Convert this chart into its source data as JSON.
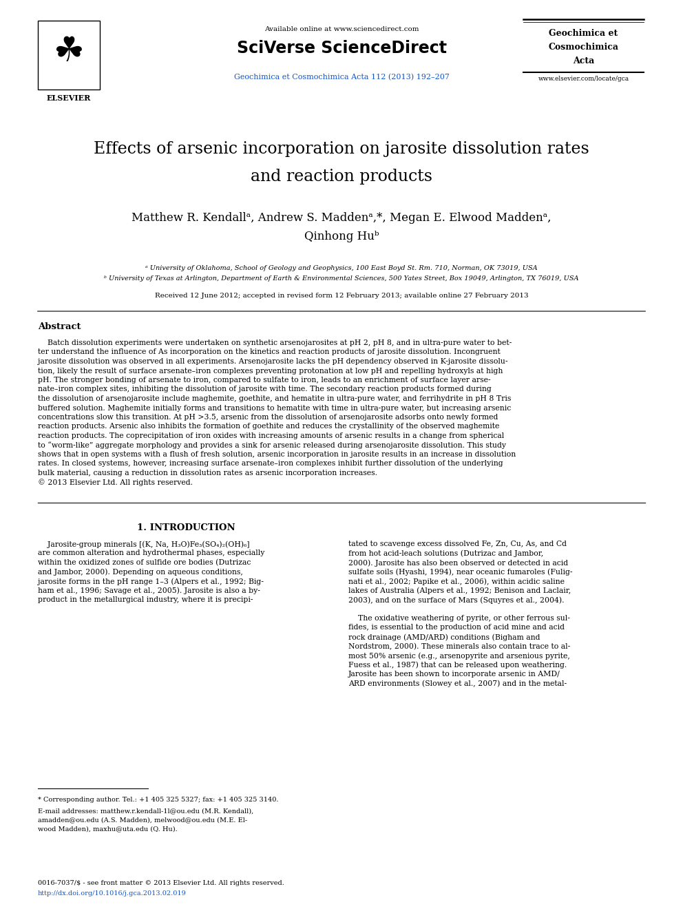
{
  "page_width": 9.92,
  "page_height": 13.23,
  "bg_color": "#ffffff",
  "header_available": "Available online at www.sciencedirect.com",
  "header_sciverse": "SciVerse ScienceDirect",
  "header_journal_link": "Geochimica et Cosmochimica Acta 112 (2013) 192–207",
  "journal_name_line1": "Geochimica et",
  "journal_name_line2": "Cosmochimica",
  "journal_name_line3": "Acta",
  "journal_url": "www.elsevier.com/locate/gca",
  "elsevier_text": "ELSEVIER",
  "title_line1": "Effects of arsenic incorporation on jarosite dissolution rates",
  "title_line2": "and reaction products",
  "authors_line1": "Matthew R. Kendallᵃ, Andrew S. Maddenᵃ,*, Megan E. Elwood Maddenᵃ,",
  "authors_line2": "Qinhong Huᵇ",
  "affiliation_a": "ᵃ University of Oklahoma, School of Geology and Geophysics, 100 East Boyd St. Rm. 710, Norman, OK 73019, USA",
  "affiliation_b": "ᵇ University of Texas at Arlington, Department of Earth & Environmental Sciences, 500 Yates Street, Box 19049, Arlington, TX 76019, USA",
  "received_text": "Received 12 June 2012; accepted in revised form 12 February 2013; available online 27 February 2013",
  "abstract_heading": "Abstract",
  "abstract_line1": "    Batch dissolution experiments were undertaken on synthetic arsenojarosites at pH 2, pH 8, and in ultra-pure water to bet-",
  "abstract_line2": "ter understand the influence of As incorporation on the kinetics and reaction products of jarosite dissolution. Incongruent",
  "abstract_line3": "jarosite dissolution was observed in all experiments. Arsenojarosite lacks the pH dependency observed in K-jarosite dissolu-",
  "abstract_line4": "tion, likely the result of surface arsenate–iron complexes preventing protonation at low pH and repelling hydroxyls at high",
  "abstract_line5": "pH. The stronger bonding of arsenate to iron, compared to sulfate to iron, leads to an enrichment of surface layer arse-",
  "abstract_line6": "nate–iron complex sites, inhibiting the dissolution of jarosite with time. The secondary reaction products formed during",
  "abstract_line7": "the dissolution of arsenojarosite include maghemite, goethite, and hematite in ultra-pure water, and ferrihydrite in pH 8 Tris",
  "abstract_line8": "buffered solution. Maghemite initially forms and transitions to hematite with time in ultra-pure water, but increasing arsenic",
  "abstract_line9": "concentrations slow this transition. At pH >3.5, arsenic from the dissolution of arsenojarosite adsorbs onto newly formed",
  "abstract_line10": "reaction products. Arsenic also inhibits the formation of goethite and reduces the crystallinity of the observed maghemite",
  "abstract_line11": "reaction products. The coprecipitation of iron oxides with increasing amounts of arsenic results in a change from spherical",
  "abstract_line12": "to “worm-like” aggregate morphology and provides a sink for arsenic released during arsenojarosite dissolution. This study",
  "abstract_line13": "shows that in open systems with a flush of fresh solution, arsenic incorporation in jarosite results in an increase in dissolution",
  "abstract_line14": "rates. In closed systems, however, increasing surface arsenate–iron complexes inhibit further dissolution of the underlying",
  "abstract_line15": "bulk material, causing a reduction in dissolution rates as arsenic incorporation increases.",
  "abstract_copyright": "© 2013 Elsevier Ltd. All rights reserved.",
  "section1_heading": "1. INTRODUCTION",
  "col1_l1": "    Jarosite-group minerals [(K, Na, H₃O)Fe₃(SO₄)₂(OH)₆]",
  "col1_l2": "are common alteration and hydrothermal phases, especially",
  "col1_l3": "within the oxidized zones of sulfide ore bodies (Dutrizac",
  "col1_l4": "and Jambor, 2000). Depending on aqueous conditions,",
  "col1_l5": "jarosite forms in the pH range 1–3 (Alpers et al., 1992; Big-",
  "col1_l6": "ham et al., 1996; Savage et al., 2005). Jarosite is also a by-",
  "col1_l7": "product in the metallurgical industry, where it is precipi-",
  "col2_l1": "tated to scavenge excess dissolved Fe, Zn, Cu, As, and Cd",
  "col2_l2": "from hot acid-leach solutions (Dutrizac and Jambor,",
  "col2_l3": "2000). Jarosite has also been observed or detected in acid",
  "col2_l4": "sulfate soils (Hyashi, 1994), near oceanic fumaroles (Fulig-",
  "col2_l5": "nati et al., 2002; Papike et al., 2006), within acidic saline",
  "col2_l6": "lakes of Australia (Alpers et al., 1992; Benison and Laclair,",
  "col2_l7": "2003), and on the surface of Mars (Squyres et al., 2004).",
  "col2_l8": "",
  "col2_l9": "    The oxidative weathering of pyrite, or other ferrous sul-",
  "col2_l10": "fides, is essential to the production of acid mine and acid",
  "col2_l11": "rock drainage (AMD/ARD) conditions (Bigham and",
  "col2_l12": "Nordstrom, 2000). These minerals also contain trace to al-",
  "col2_l13": "most 50% arsenic (e.g., arsenopyrite and arsenious pyrite,",
  "col2_l14": "Fuess et al., 1987) that can be released upon weathering.",
  "col2_l15": "Jarosite has been shown to incorporate arsenic in AMD/",
  "col2_l16": "ARD environments (Slowey et al., 2007) and in the metal-",
  "footnote_star": "* Corresponding author. Tel.: +1 405 325 5327; fax: +1 405 325 3140.",
  "footnote_email_l1": "E-mail addresses: matthew.r.kendall-1l@ou.edu (M.R. Kendall),",
  "footnote_email_l2": "amadden@ou.edu (A.S. Madden), melwood@ou.edu (M.E. El-",
  "footnote_email_l3": "wood Madden), maxhu@uta.edu (Q. Hu).",
  "issn_text": "0016-7037/$ - see front matter © 2013 Elsevier Ltd. All rights reserved.",
  "doi_text": "http://dx.doi.org/10.1016/j.gca.2013.02.019",
  "link_color": "#1155cc",
  "text_color": "#000000"
}
